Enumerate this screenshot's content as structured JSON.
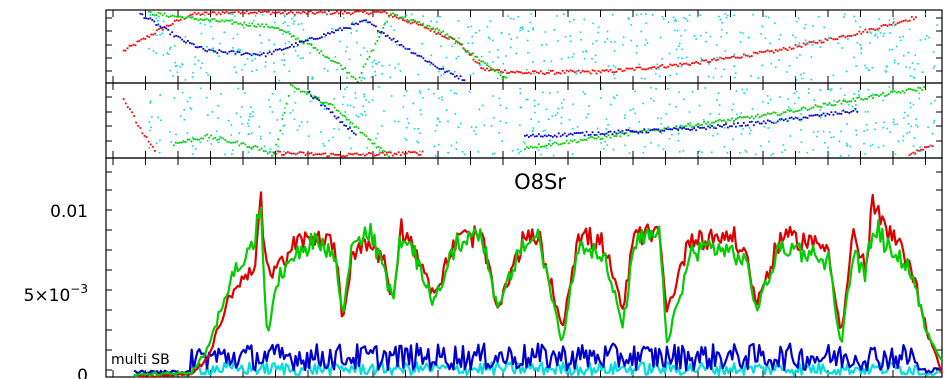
{
  "chart_data": [
    {
      "type": "scatter",
      "panel": "top-strip",
      "tick_labels": false,
      "series": [
        {
          "color": "#ff0000",
          "points": [
            [
              0.02,
              0.45
            ],
            [
              0.06,
              0.72
            ],
            [
              0.1,
              0.95
            ],
            [
              0.16,
              0.99
            ],
            [
              0.22,
              0.97
            ],
            [
              0.33,
              0.98
            ],
            [
              0.38,
              0.78
            ],
            [
              0.42,
              0.58
            ],
            [
              0.45,
              0.2
            ],
            [
              0.5,
              0.15
            ],
            [
              0.6,
              0.17
            ],
            [
              0.7,
              0.28
            ],
            [
              0.8,
              0.45
            ],
            [
              0.9,
              0.7
            ],
            [
              0.97,
              0.92
            ]
          ]
        },
        {
          "color": "#00cc00",
          "points": [
            [
              0.05,
              0.97
            ],
            [
              0.1,
              0.9
            ],
            [
              0.2,
              0.78
            ],
            [
              0.24,
              0.55
            ],
            [
              0.28,
              0.25
            ],
            [
              0.3,
              0.05
            ],
            [
              0.34,
              0.97
            ],
            [
              0.4,
              0.72
            ],
            [
              0.45,
              0.3
            ],
            [
              0.48,
              0.05
            ]
          ]
        },
        {
          "color": "#0000cc",
          "points": [
            [
              0.04,
              0.96
            ],
            [
              0.09,
              0.6
            ],
            [
              0.12,
              0.45
            ],
            [
              0.19,
              0.4
            ],
            [
              0.31,
              0.86
            ],
            [
              0.35,
              0.55
            ],
            [
              0.4,
              0.2
            ],
            [
              0.43,
              0.05
            ]
          ]
        },
        {
          "color": "#00dddd",
          "points": "scattered"
        }
      ]
    },
    {
      "type": "scatter",
      "panel": "middle-strip",
      "tick_labels": false,
      "series": [
        {
          "color": "#ff0000",
          "points": [
            [
              0.02,
              0.8
            ],
            [
              0.04,
              0.4
            ],
            [
              0.06,
              0.05
            ],
            [
              0.2,
              0.08
            ],
            [
              0.28,
              0.05
            ],
            [
              0.38,
              0.08
            ],
            [
              0.96,
              0.06
            ],
            [
              0.99,
              0.2
            ]
          ]
        },
        {
          "color": "#00cc00",
          "points": [
            [
              0.08,
              0.2
            ],
            [
              0.12,
              0.3
            ],
            [
              0.18,
              0.15
            ],
            [
              0.2,
              0.05
            ],
            [
              0.22,
              0.98
            ],
            [
              0.27,
              0.7
            ],
            [
              0.32,
              0.2
            ],
            [
              0.34,
              0.02
            ],
            [
              0.5,
              0.15
            ],
            [
              0.6,
              0.3
            ],
            [
              0.7,
              0.45
            ],
            [
              0.8,
              0.6
            ],
            [
              0.9,
              0.8
            ],
            [
              0.98,
              0.95
            ]
          ]
        },
        {
          "color": "#0000cc",
          "points": [
            [
              0.24,
              0.9
            ],
            [
              0.27,
              0.6
            ],
            [
              0.3,
              0.3
            ],
            [
              0.5,
              0.3
            ],
            [
              0.6,
              0.35
            ],
            [
              0.7,
              0.4
            ],
            [
              0.8,
              0.5
            ],
            [
              0.9,
              0.65
            ]
          ]
        },
        {
          "color": "#00dddd",
          "points": "scattered"
        }
      ]
    },
    {
      "type": "line",
      "panel": "main",
      "title": "O8Sr",
      "annotation": "multi SB",
      "ylim": [
        0,
        0.0125
      ],
      "xlim": [
        0,
        1
      ],
      "y_tick_labels": [
        {
          "value": 0.01,
          "label": "0.01"
        },
        {
          "value": 0.005,
          "label": "5×10",
          "exponent": "−3"
        },
        {
          "value": 0,
          "label": "0"
        }
      ],
      "x_tick_labels": false,
      "series": [
        {
          "color": "#dd0000",
          "key_points": [
            [
              0.0,
              0.0001
            ],
            [
              0.03,
              0.0001
            ],
            [
              0.07,
              0.0002
            ],
            [
              0.09,
              0.001
            ],
            [
              0.12,
              0.005
            ],
            [
              0.15,
              0.0068
            ],
            [
              0.157,
              0.0108
            ],
            [
              0.16,
              0.0075
            ],
            [
              0.17,
              0.006
            ],
            [
              0.2,
              0.008
            ],
            [
              0.23,
              0.0085
            ],
            [
              0.25,
              0.0075
            ],
            [
              0.258,
              0.0032
            ],
            [
              0.27,
              0.0075
            ],
            [
              0.29,
              0.008
            ],
            [
              0.31,
              0.007
            ],
            [
              0.32,
              0.0045
            ],
            [
              0.33,
              0.009
            ],
            [
              0.35,
              0.0075
            ],
            [
              0.37,
              0.0048
            ],
            [
              0.4,
              0.0083
            ],
            [
              0.43,
              0.0085
            ],
            [
              0.45,
              0.004
            ],
            [
              0.48,
              0.008
            ],
            [
              0.5,
              0.0085
            ],
            [
              0.53,
              0.003
            ],
            [
              0.55,
              0.0085
            ],
            [
              0.58,
              0.008
            ],
            [
              0.605,
              0.004
            ],
            [
              0.62,
              0.0085
            ],
            [
              0.65,
              0.0085
            ],
            [
              0.66,
              0.004
            ],
            [
              0.69,
              0.0085
            ],
            [
              0.71,
              0.0083
            ],
            [
              0.74,
              0.0085
            ],
            [
              0.76,
              0.007
            ],
            [
              0.77,
              0.0043
            ],
            [
              0.8,
              0.0083
            ],
            [
              0.83,
              0.0082
            ],
            [
              0.86,
              0.0077
            ],
            [
              0.875,
              0.0025
            ],
            [
              0.89,
              0.0085
            ],
            [
              0.905,
              0.0065
            ],
            [
              0.915,
              0.0105
            ],
            [
              0.93,
              0.0088
            ],
            [
              0.96,
              0.007
            ],
            [
              0.98,
              0.003
            ],
            [
              1.0,
              0.0002
            ]
          ]
        },
        {
          "color": "#00cc00",
          "key_points": [
            [
              0.0,
              0.0001
            ],
            [
              0.03,
              0.0002
            ],
            [
              0.07,
              0.0002
            ],
            [
              0.09,
              0.0015
            ],
            [
              0.12,
              0.006
            ],
            [
              0.15,
              0.008
            ],
            [
              0.157,
              0.0112
            ],
            [
              0.16,
              0.007
            ],
            [
              0.165,
              0.0025
            ],
            [
              0.18,
              0.006
            ],
            [
              0.2,
              0.0075
            ],
            [
              0.23,
              0.0082
            ],
            [
              0.25,
              0.007
            ],
            [
              0.258,
              0.0035
            ],
            [
              0.27,
              0.008
            ],
            [
              0.29,
              0.0088
            ],
            [
              0.31,
              0.0065
            ],
            [
              0.32,
              0.0045
            ],
            [
              0.33,
              0.0085
            ],
            [
              0.35,
              0.007
            ],
            [
              0.37,
              0.0045
            ],
            [
              0.4,
              0.008
            ],
            [
              0.43,
              0.0088
            ],
            [
              0.45,
              0.004
            ],
            [
              0.48,
              0.0078
            ],
            [
              0.5,
              0.0085
            ],
            [
              0.53,
              0.002
            ],
            [
              0.55,
              0.008
            ],
            [
              0.58,
              0.0075
            ],
            [
              0.605,
              0.003
            ],
            [
              0.62,
              0.008
            ],
            [
              0.65,
              0.0085
            ],
            [
              0.66,
              0.002
            ],
            [
              0.69,
              0.0075
            ],
            [
              0.71,
              0.0078
            ],
            [
              0.74,
              0.0075
            ],
            [
              0.76,
              0.0065
            ],
            [
              0.77,
              0.004
            ],
            [
              0.8,
              0.0078
            ],
            [
              0.83,
              0.0075
            ],
            [
              0.86,
              0.007
            ],
            [
              0.875,
              0.0018
            ],
            [
              0.89,
              0.0075
            ],
            [
              0.905,
              0.006
            ],
            [
              0.915,
              0.0093
            ],
            [
              0.93,
              0.008
            ],
            [
              0.96,
              0.0065
            ],
            [
              0.98,
              0.0028
            ],
            [
              1.0,
              0.001
            ]
          ]
        },
        {
          "color": "#0000cc",
          "baseline": 0.0012,
          "amplitude": 0.0008
        },
        {
          "color": "#00dddd",
          "baseline": 0.0005,
          "amplitude": 0.0004
        }
      ]
    }
  ]
}
